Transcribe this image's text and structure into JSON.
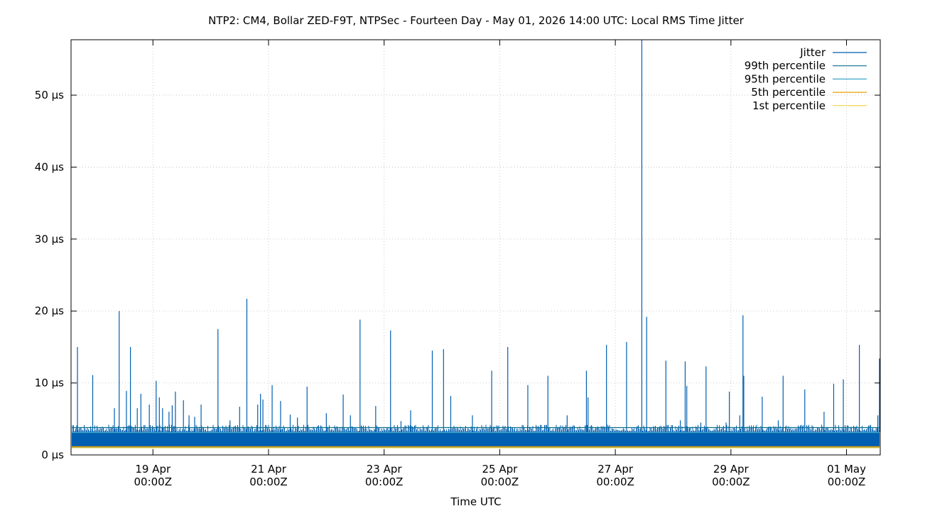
{
  "chart_data": {
    "type": "line",
    "title": "NTP2: CM4, Bollar ZED-F9T, NTPSec - Fourteen Day - May 01, 2026 14:00 UTC: Local RMS Time Jitter",
    "xlabel": "Time UTC",
    "ylabel": "",
    "y_unit": "µs",
    "xlim": [
      "2026-04-17T14:00Z",
      "2026-05-01T14:00Z"
    ],
    "ylim": [
      0,
      57.7
    ],
    "grid": true,
    "legend_position": "top-right",
    "x_ticks": [
      {
        "t": "2026-04-19T00:00Z",
        "line1": "19 Apr",
        "line2": "00:00Z"
      },
      {
        "t": "2026-04-21T00:00Z",
        "line1": "21 Apr",
        "line2": "00:00Z"
      },
      {
        "t": "2026-04-23T00:00Z",
        "line1": "23 Apr",
        "line2": "00:00Z"
      },
      {
        "t": "2026-04-25T00:00Z",
        "line1": "25 Apr",
        "line2": "00:00Z"
      },
      {
        "t": "2026-04-27T00:00Z",
        "line1": "27 Apr",
        "line2": "00:00Z"
      },
      {
        "t": "2026-04-29T00:00Z",
        "line1": "29 Apr",
        "line2": "00:00Z"
      },
      {
        "t": "2026-05-01T00:00Z",
        "line1": "01 May",
        "line2": "00:00Z"
      }
    ],
    "y_ticks": [
      {
        "v": 0,
        "label": "0 µs"
      },
      {
        "v": 10,
        "label": "10 µs"
      },
      {
        "v": 20,
        "label": "20 µs"
      },
      {
        "v": 30,
        "label": "30 µs"
      },
      {
        "v": 40,
        "label": "40 µs"
      },
      {
        "v": 50,
        "label": "50 µs"
      }
    ],
    "series": [
      {
        "name": "Jitter",
        "color": "#005fb0",
        "band": [
          1.0,
          3.2
        ],
        "spikes": [
          [
            "2026-04-17T16:40Z",
            15.0
          ],
          [
            "2026-04-17T23:00Z",
            11.1
          ],
          [
            "2026-04-18T08:00Z",
            6.5
          ],
          [
            "2026-04-18T10:00Z",
            20.0
          ],
          [
            "2026-04-18T13:00Z",
            8.9
          ],
          [
            "2026-04-18T14:40Z",
            15.0
          ],
          [
            "2026-04-18T17:30Z",
            6.5
          ],
          [
            "2026-04-18T19:00Z",
            8.5
          ],
          [
            "2026-04-18T22:30Z",
            7.0
          ],
          [
            "2026-04-19T01:20Z",
            10.3
          ],
          [
            "2026-04-19T02:40Z",
            8.0
          ],
          [
            "2026-04-19T04:00Z",
            6.5
          ],
          [
            "2026-04-19T06:40Z",
            6.0
          ],
          [
            "2026-04-19T08:00Z",
            6.9
          ],
          [
            "2026-04-19T09:20Z",
            8.8
          ],
          [
            "2026-04-19T12:40Z",
            7.6
          ],
          [
            "2026-04-19T15:00Z",
            5.5
          ],
          [
            "2026-04-19T17:20Z",
            5.3
          ],
          [
            "2026-04-19T20:00Z",
            7.0
          ],
          [
            "2026-04-20T03:00Z",
            17.5
          ],
          [
            "2026-04-20T08:00Z",
            4.8
          ],
          [
            "2026-04-20T12:00Z",
            6.7
          ],
          [
            "2026-04-20T15:00Z",
            21.7
          ],
          [
            "2026-04-20T19:30Z",
            7.0
          ],
          [
            "2026-04-20T20:40Z",
            8.5
          ],
          [
            "2026-04-20T21:40Z",
            7.7
          ],
          [
            "2026-04-21T01:30Z",
            9.7
          ],
          [
            "2026-04-21T05:00Z",
            7.5
          ],
          [
            "2026-04-21T09:00Z",
            5.6
          ],
          [
            "2026-04-21T12:00Z",
            5.2
          ],
          [
            "2026-04-21T16:00Z",
            9.5
          ],
          [
            "2026-04-22T00:00Z",
            5.8
          ],
          [
            "2026-04-22T07:00Z",
            8.4
          ],
          [
            "2026-04-22T10:00Z",
            5.5
          ],
          [
            "2026-04-22T14:00Z",
            18.8
          ],
          [
            "2026-04-22T20:30Z",
            6.8
          ],
          [
            "2026-04-23T02:40Z",
            17.3
          ],
          [
            "2026-04-23T07:00Z",
            4.7
          ],
          [
            "2026-04-23T11:00Z",
            6.2
          ],
          [
            "2026-04-23T20:00Z",
            14.5
          ],
          [
            "2026-04-24T00:40Z",
            14.7
          ],
          [
            "2026-04-24T03:40Z",
            8.2
          ],
          [
            "2026-04-24T12:40Z",
            5.5
          ],
          [
            "2026-04-24T20:40Z",
            11.7
          ],
          [
            "2026-04-25T03:20Z",
            15.0
          ],
          [
            "2026-04-25T11:40Z",
            9.7
          ],
          [
            "2026-04-25T20:00Z",
            11.0
          ],
          [
            "2026-04-26T04:00Z",
            5.5
          ],
          [
            "2026-04-26T12:00Z",
            11.7
          ],
          [
            "2026-04-26T12:40Z",
            8.0
          ],
          [
            "2026-04-26T20:20Z",
            15.3
          ],
          [
            "2026-04-27T04:40Z",
            15.7
          ],
          [
            "2026-04-27T11:00Z",
            57.7
          ],
          [
            "2026-04-27T13:00Z",
            19.2
          ],
          [
            "2026-04-27T21:00Z",
            13.1
          ],
          [
            "2026-04-28T03:00Z",
            4.8
          ],
          [
            "2026-04-28T05:00Z",
            13.0
          ],
          [
            "2026-04-28T05:40Z",
            9.6
          ],
          [
            "2026-04-28T11:30Z",
            4.5
          ],
          [
            "2026-04-28T13:40Z",
            12.3
          ],
          [
            "2026-04-28T22:00Z",
            4.5
          ],
          [
            "2026-04-28T23:20Z",
            8.8
          ],
          [
            "2026-04-29T03:40Z",
            5.5
          ],
          [
            "2026-04-29T05:00Z",
            19.4
          ],
          [
            "2026-04-29T05:20Z",
            11.0
          ],
          [
            "2026-04-29T13:00Z",
            8.1
          ],
          [
            "2026-04-29T19:40Z",
            4.8
          ],
          [
            "2026-04-29T21:40Z",
            11.0
          ],
          [
            "2026-04-30T06:40Z",
            9.1
          ],
          [
            "2026-04-30T14:40Z",
            6.0
          ],
          [
            "2026-04-30T18:40Z",
            9.9
          ],
          [
            "2026-04-30T22:40Z",
            10.5
          ],
          [
            "2026-05-01T05:20Z",
            15.3
          ],
          [
            "2026-05-01T13:00Z",
            5.5
          ],
          [
            "2026-05-01T13:40Z",
            13.4
          ]
        ]
      },
      {
        "name": "99th percentile",
        "color": "#0a6f8f",
        "value": 3.8
      },
      {
        "name": "95th percentile",
        "color": "#3aa8c8",
        "value": 3.1
      },
      {
        "name": "5th percentile",
        "color": "#e6a000",
        "value": 1.15
      },
      {
        "name": "1st percentile",
        "color": "#f0d040",
        "value": 1.0
      }
    ]
  }
}
